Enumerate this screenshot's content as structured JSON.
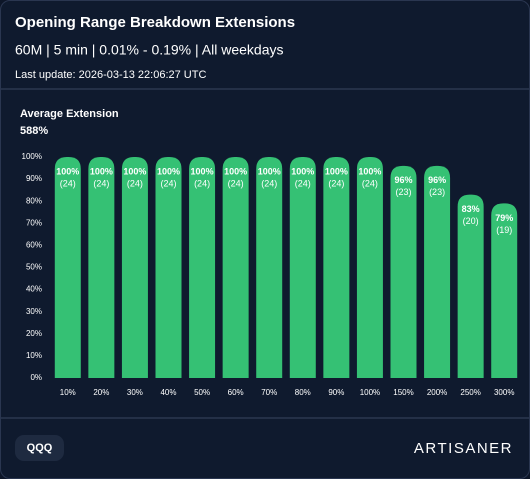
{
  "header": {
    "title": "Opening Range Breakdown Extensions",
    "subtitle": "60M | 5 min | 0.01% - 0.19% | All weekdays",
    "last_update": "Last update: 2026-03-13 22:06:27 UTC"
  },
  "chart_data": {
    "type": "bar",
    "title": "Average Extension",
    "subtitle": "588%",
    "categories": [
      "10%",
      "20%",
      "30%",
      "40%",
      "50%",
      "60%",
      "70%",
      "80%",
      "90%",
      "100%",
      "150%",
      "200%",
      "250%",
      "300%"
    ],
    "values": [
      100,
      100,
      100,
      100,
      100,
      100,
      100,
      100,
      100,
      100,
      96,
      96,
      83,
      79
    ],
    "value_labels": [
      "100%",
      "100%",
      "100%",
      "100%",
      "100%",
      "100%",
      "100%",
      "100%",
      "100%",
      "100%",
      "96%",
      "96%",
      "83%",
      "79%"
    ],
    "count_labels": [
      "(24)",
      "(24)",
      "(24)",
      "(24)",
      "(24)",
      "(24)",
      "(24)",
      "(24)",
      "(24)",
      "(24)",
      "(23)",
      "(23)",
      "(20)",
      "(19)"
    ],
    "color": "#35c174",
    "ylim": [
      0,
      100
    ],
    "yticks": [
      {
        "value": 0,
        "label": "0%"
      },
      {
        "value": 10,
        "label": "10%"
      },
      {
        "value": 20,
        "label": "20%"
      },
      {
        "value": 30,
        "label": "30%"
      },
      {
        "value": 40,
        "label": "40%"
      },
      {
        "value": 50,
        "label": "50%"
      },
      {
        "value": 60,
        "label": "60%"
      },
      {
        "value": 70,
        "label": "70%"
      },
      {
        "value": 80,
        "label": "80%"
      },
      {
        "value": 90,
        "label": "90%"
      },
      {
        "value": 100,
        "label": "100%"
      }
    ]
  },
  "footer": {
    "ticker": "QQQ",
    "brand": "ARTISANER"
  }
}
